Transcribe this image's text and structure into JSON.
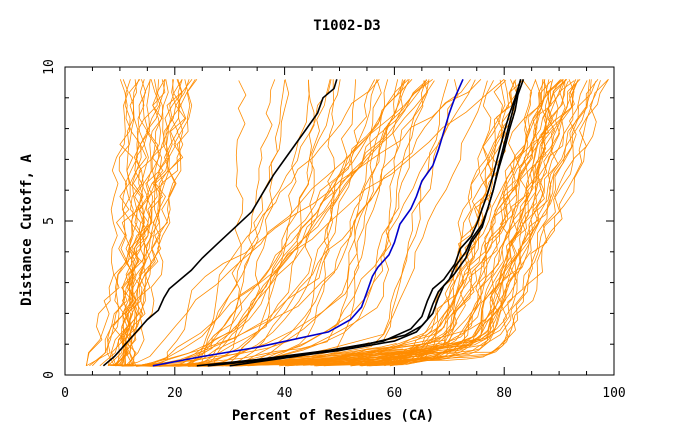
{
  "chart_data": {
    "type": "line",
    "title": "T1002-D3",
    "xlabel": "Percent of Residues (CA)",
    "ylabel": "Distance Cutoff, A",
    "xlim": [
      0,
      100
    ],
    "ylim": [
      0,
      10
    ],
    "x_ticks": [
      0,
      20,
      40,
      60,
      80,
      100
    ],
    "y_ticks": [
      0,
      5,
      10
    ],
    "grid": false,
    "legend": "none",
    "colors": {
      "background_models": "#ff8c00",
      "highlight_blue": "#0000cc",
      "highlight_black": "#000000",
      "axes": "#000000"
    },
    "series": [
      {
        "name": "black-left",
        "color": "#000000",
        "x": [
          7,
          9,
          11,
          13,
          15,
          17,
          18,
          19,
          21,
          23,
          25,
          28,
          31,
          34,
          36,
          38,
          40,
          42,
          44,
          46,
          47,
          49,
          49.5
        ],
        "y": [
          0.3,
          0.6,
          1.0,
          1.4,
          1.8,
          2.1,
          2.5,
          2.8,
          3.1,
          3.4,
          3.8,
          4.3,
          4.8,
          5.3,
          5.9,
          6.5,
          7.0,
          7.5,
          8.0,
          8.5,
          9.0,
          9.3,
          9.6
        ]
      },
      {
        "name": "blue",
        "color": "#0000cc",
        "x": [
          16,
          25,
          35,
          48,
          52,
          54,
          55,
          56,
          57,
          59,
          60,
          61,
          63,
          64,
          65,
          67,
          68,
          69,
          70,
          71,
          72.5
        ],
        "y": [
          0.3,
          0.6,
          0.9,
          1.4,
          1.8,
          2.2,
          2.7,
          3.2,
          3.5,
          3.9,
          4.3,
          4.9,
          5.4,
          5.8,
          6.3,
          6.8,
          7.3,
          7.9,
          8.5,
          9.0,
          9.6
        ]
      },
      {
        "name": "black-right-1",
        "color": "#000000",
        "x": [
          24,
          35,
          48,
          58,
          63,
          65,
          66,
          67,
          69,
          71,
          72,
          74,
          75,
          76,
          77,
          78,
          79,
          80,
          81,
          82,
          83
        ],
        "y": [
          0.3,
          0.5,
          0.8,
          1.1,
          1.5,
          1.9,
          2.4,
          2.8,
          3.1,
          3.6,
          4.1,
          4.5,
          4.9,
          5.4,
          5.9,
          6.5,
          7.2,
          7.9,
          8.5,
          9.0,
          9.6
        ]
      },
      {
        "name": "black-right-2",
        "color": "#000000",
        "x": [
          26,
          37,
          50,
          60,
          64,
          66,
          67,
          68,
          70,
          71,
          73,
          74,
          76,
          77,
          78,
          79,
          80,
          81,
          82,
          82.5,
          83.5
        ],
        "y": [
          0.3,
          0.5,
          0.8,
          1.1,
          1.4,
          1.8,
          2.3,
          2.7,
          3.1,
          3.5,
          4.0,
          4.4,
          4.9,
          5.4,
          6.0,
          6.7,
          7.3,
          8.0,
          8.6,
          9.1,
          9.6
        ]
      },
      {
        "name": "black-right-3",
        "color": "#000000",
        "x": [
          30,
          42,
          55,
          62,
          65,
          67,
          68,
          69,
          71,
          73,
          74,
          76,
          77,
          78,
          79,
          80,
          81,
          82,
          83
        ],
        "y": [
          0.3,
          0.6,
          1.0,
          1.3,
          1.6,
          2.0,
          2.5,
          2.9,
          3.3,
          3.8,
          4.3,
          4.8,
          5.4,
          6.0,
          6.8,
          7.5,
          8.2,
          8.9,
          9.6
        ]
      }
    ]
  }
}
